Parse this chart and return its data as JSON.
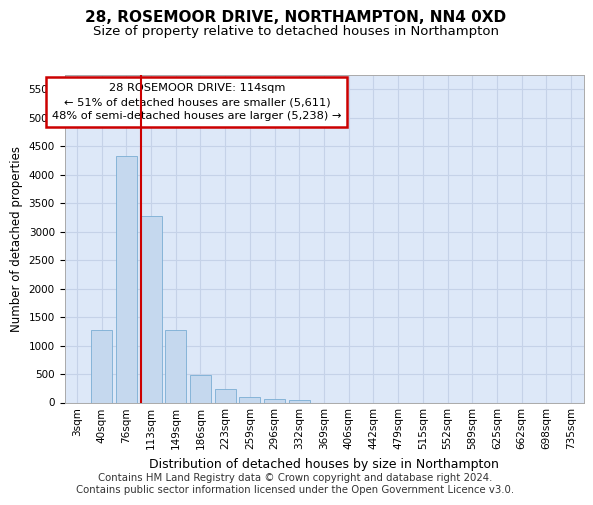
{
  "title_line1": "28, ROSEMOOR DRIVE, NORTHAMPTON, NN4 0XD",
  "title_line2": "Size of property relative to detached houses in Northampton",
  "xlabel": "Distribution of detached houses by size in Northampton",
  "ylabel": "Number of detached properties",
  "categories": [
    "3sqm",
    "40sqm",
    "76sqm",
    "113sqm",
    "149sqm",
    "186sqm",
    "223sqm",
    "259sqm",
    "296sqm",
    "332sqm",
    "369sqm",
    "406sqm",
    "442sqm",
    "479sqm",
    "515sqm",
    "552sqm",
    "589sqm",
    "625sqm",
    "662sqm",
    "698sqm",
    "735sqm"
  ],
  "values": [
    0,
    1270,
    4330,
    3280,
    1280,
    480,
    240,
    100,
    70,
    50,
    0,
    0,
    0,
    0,
    0,
    0,
    0,
    0,
    0,
    0,
    0
  ],
  "bar_color": "#c5d8ee",
  "bar_edge_color": "#7aadd4",
  "highlight_bar_index": 3,
  "highlight_line_color": "#cc0000",
  "ylim_max": 5750,
  "yticks": [
    0,
    500,
    1000,
    1500,
    2000,
    2500,
    3000,
    3500,
    4000,
    4500,
    5000,
    5500
  ],
  "annotation_line1": "28 ROSEMOOR DRIVE: 114sqm",
  "annotation_line2": "← 51% of detached houses are smaller (5,611)",
  "annotation_line3": "48% of semi-detached houses are larger (5,238) →",
  "annotation_border_color": "#cc0000",
  "background_color": "#dde8f8",
  "grid_color": "#c5d2e8",
  "footer_text": "Contains HM Land Registry data © Crown copyright and database right 2024.\nContains public sector information licensed under the Open Government Licence v3.0."
}
